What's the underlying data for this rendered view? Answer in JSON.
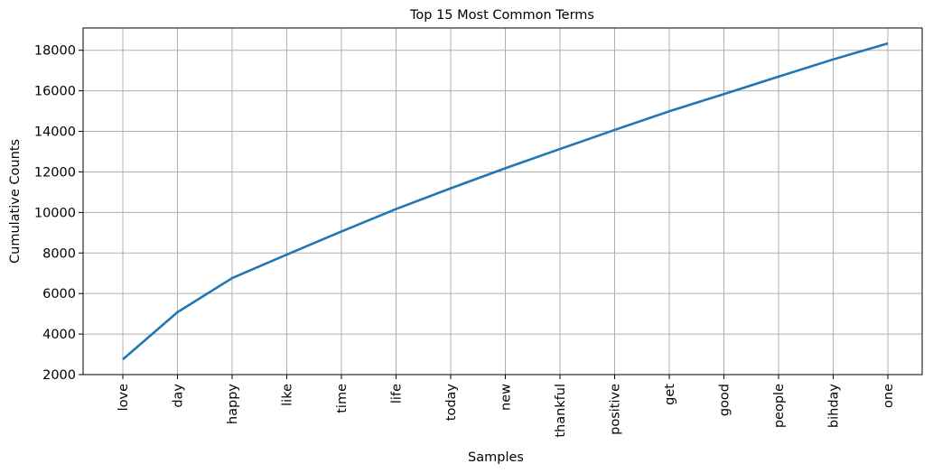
{
  "chart_data": {
    "type": "line",
    "title": "Top 15 Most Common Terms",
    "xlabel": "Samples",
    "ylabel": "Cumulative Counts",
    "categories": [
      "love",
      "day",
      "happy",
      "like",
      "time",
      "life",
      "today",
      "new",
      "thankful",
      "positive",
      "get",
      "good",
      "people",
      "bihday",
      "one"
    ],
    "values": [
      2750,
      5080,
      6760,
      7920,
      9060,
      10170,
      11190,
      12180,
      13130,
      14070,
      14990,
      15840,
      16700,
      17550,
      18340
    ],
    "ylim": [
      2000,
      19100
    ],
    "yticks": [
      2000,
      4000,
      6000,
      8000,
      10000,
      12000,
      14000,
      16000,
      18000
    ],
    "grid": true,
    "color": "#1f77b4"
  }
}
